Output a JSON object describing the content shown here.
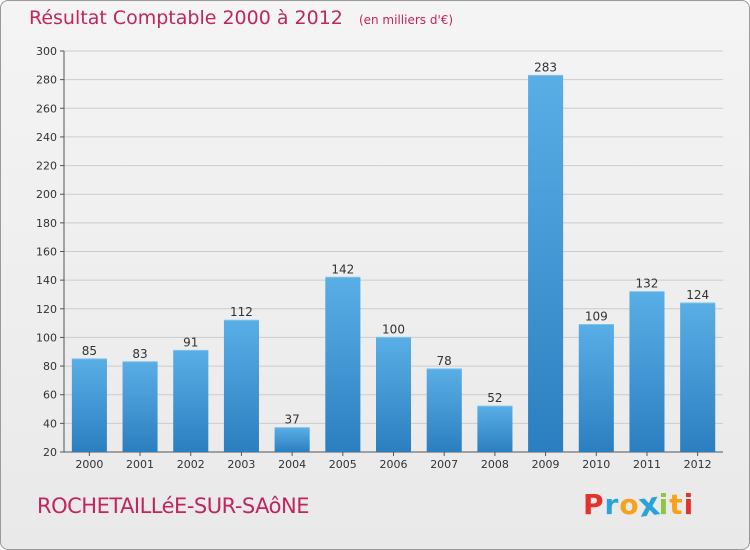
{
  "header": {
    "title": "Résultat Comptable 2000 à 2012",
    "unit": "(en milliers d'€)"
  },
  "footer": {
    "commune": "ROCHETAILLéE-SUR-SAôNE",
    "logo_letters": [
      "P",
      "r",
      "o",
      "x",
      "i",
      "t",
      "i"
    ],
    "logo_colors": [
      "#e2332d",
      "#2aa4d8",
      "#f7a21b",
      "#2aa4d8",
      "#8dc63f",
      "#f7a21b",
      "#e2332d"
    ]
  },
  "colors": {
    "bar_light": "#5aaee6",
    "bar_dark": "#2b7fc0",
    "title": "#c0265e",
    "grid": "#cccccc"
  },
  "chart_data": {
    "type": "bar",
    "title": "Résultat Comptable 2000 à 2012",
    "ylabel": "",
    "xlabel": "",
    "categories": [
      "2000",
      "2001",
      "2002",
      "2003",
      "2004",
      "2005",
      "2006",
      "2007",
      "2008",
      "2009",
      "2010",
      "2011",
      "2012"
    ],
    "values": [
      85,
      83,
      91,
      112,
      37,
      142,
      100,
      78,
      52,
      283,
      109,
      132,
      124
    ],
    "ylim": [
      20,
      300
    ],
    "yticks": [
      20,
      40,
      60,
      80,
      100,
      120,
      140,
      160,
      180,
      200,
      220,
      240,
      260,
      280,
      300
    ],
    "grid": true
  }
}
